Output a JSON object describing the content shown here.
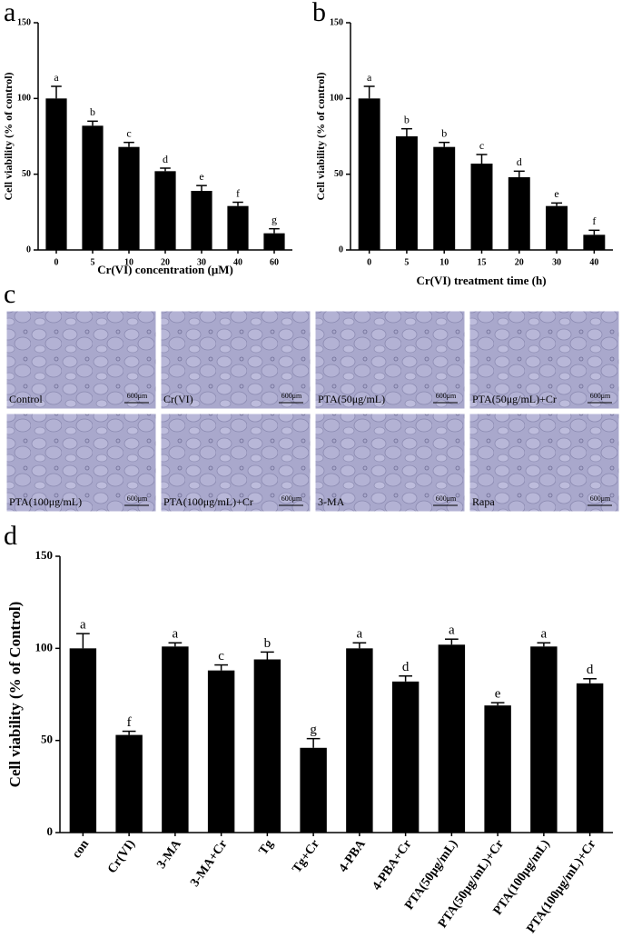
{
  "panel_labels": [
    "a",
    "b",
    "c",
    "d"
  ],
  "chart_data": [
    {
      "type": "bar",
      "ylabel": "Cell viability (% of control)",
      "xlabel": "Cr(VI) concentration (μM)",
      "categories": [
        "0",
        "5",
        "10",
        "20",
        "30",
        "40",
        "60"
      ],
      "values": [
        100,
        82,
        68,
        52,
        39,
        29,
        11
      ],
      "errors": [
        8,
        3,
        3,
        2,
        3.5,
        2.5,
        3
      ],
      "significance": [
        "a",
        "b",
        "c",
        "d",
        "e",
        "f",
        "g"
      ],
      "color": "#000000",
      "ylim": [
        0,
        150
      ],
      "yticks": [
        0,
        50,
        100,
        150
      ]
    },
    {
      "type": "bar",
      "ylabel": "Cell viability (% of control)",
      "xlabel": "Cr(VI) treatment time (h)",
      "categories": [
        "0",
        "5",
        "10",
        "15",
        "20",
        "30",
        "40"
      ],
      "values": [
        100,
        75,
        68,
        57,
        48,
        29,
        10
      ],
      "errors": [
        8,
        5,
        3,
        6,
        4,
        2,
        3
      ],
      "significance": [
        "a",
        "b",
        "b",
        "c",
        "d",
        "e",
        "f"
      ],
      "color": "#000000",
      "ylim": [
        0,
        150
      ],
      "yticks": [
        0,
        50,
        100,
        150
      ]
    },
    {
      "type": "bar",
      "ylabel": "Cell viability (% of Control)",
      "categories": [
        "con",
        "Cr(VI)",
        "3-MA",
        "3-MA+Cr",
        "Tg",
        "Tg+Cr",
        "4-PBA",
        "4-PBA+Cr",
        "PTA(50μg/mL)",
        "PTA(50μg/mL)+Cr",
        "PTA(100μg/mL)",
        "PTA(100μg/mL)+Cr"
      ],
      "values": [
        100,
        53,
        101,
        88,
        94,
        46,
        100,
        82,
        102,
        69,
        101,
        81
      ],
      "errors": [
        8,
        2,
        2,
        3,
        4,
        5,
        3,
        3,
        3,
        1.5,
        2,
        2.5
      ],
      "significance": [
        "a",
        "f",
        "a",
        "c",
        "b",
        "g",
        "a",
        "d",
        "a",
        "e",
        "a",
        "d"
      ],
      "color": "#000000",
      "ylim": [
        0,
        150
      ],
      "yticks": [
        0,
        50,
        100,
        150
      ]
    }
  ],
  "micrographs": [
    {
      "label": "Control",
      "scale": "600μm"
    },
    {
      "label": "Cr(VI)",
      "scale": "600μm"
    },
    {
      "label": "PTA(50μg/mL)",
      "scale": "600μm"
    },
    {
      "label": "PTA(50μg/mL)+Cr",
      "scale": "600μm"
    },
    {
      "label": "PTA(100μg/mL)",
      "scale": "600μm"
    },
    {
      "label": "PTA(100μg/mL)+Cr",
      "scale": "600μm"
    },
    {
      "label": "3-MA",
      "scale": "600μm"
    },
    {
      "label": "Rapa",
      "scale": "600μm"
    }
  ]
}
